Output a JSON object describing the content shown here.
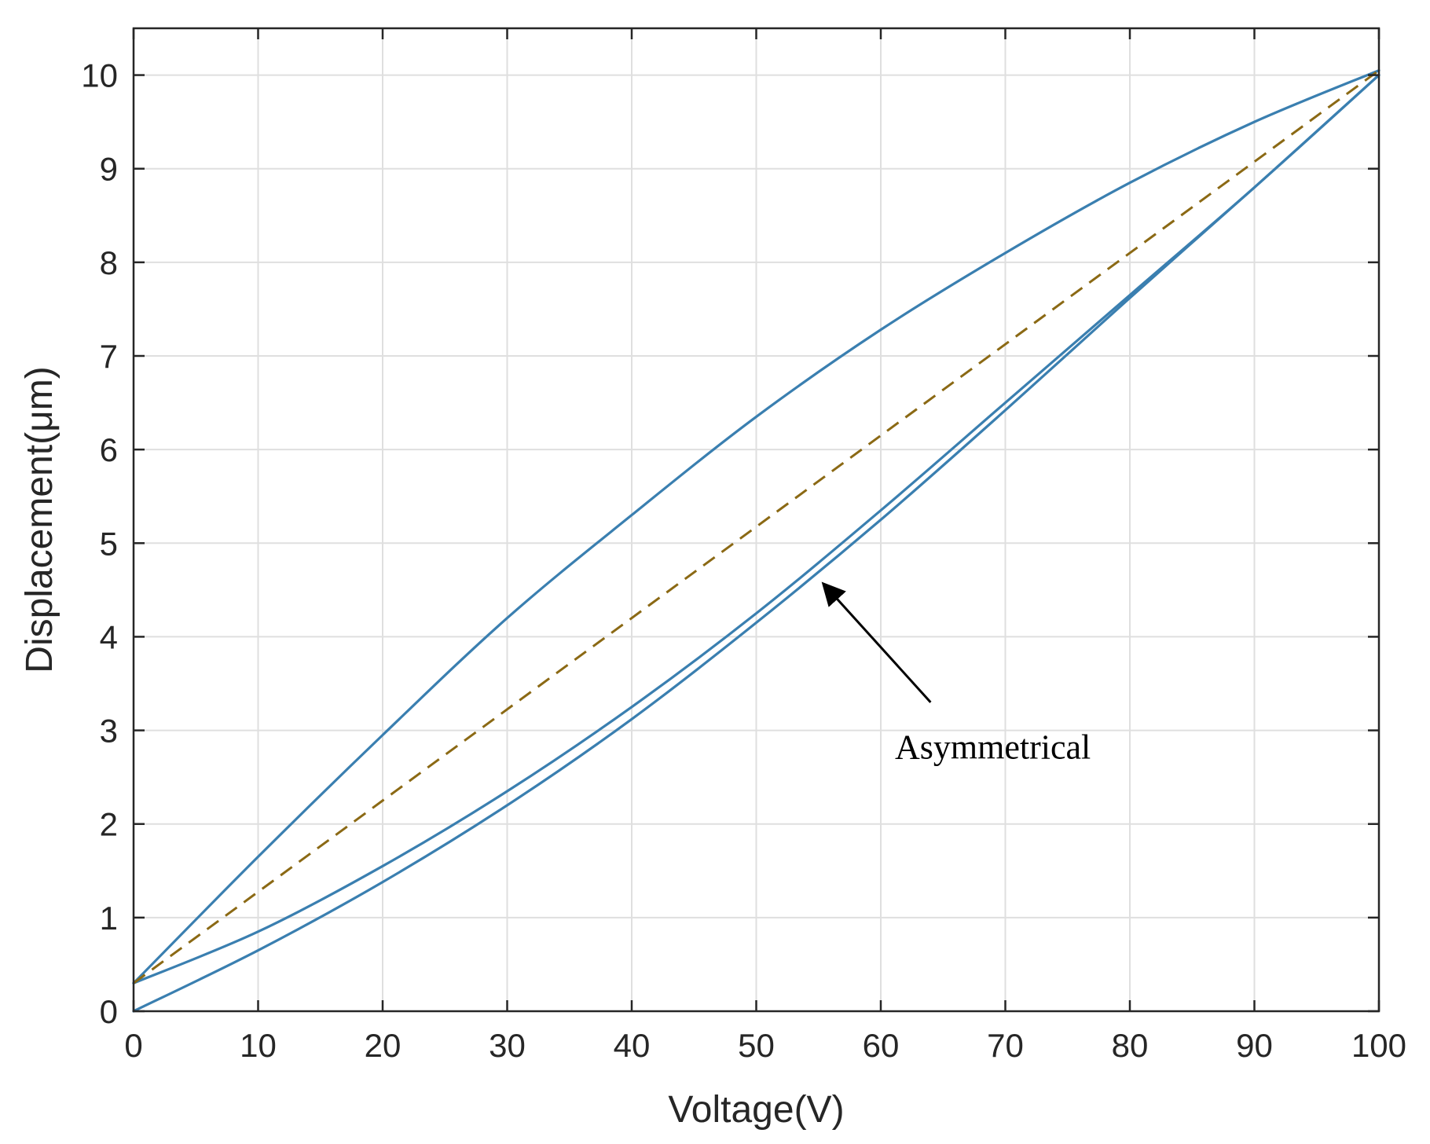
{
  "chart_data": {
    "type": "line",
    "title": "",
    "xlabel": "Voltage(V)",
    "ylabel": "Displacement(μm)",
    "xlim": [
      0,
      100
    ],
    "ylim": [
      0,
      10.5
    ],
    "xticks": [
      0,
      10,
      20,
      30,
      40,
      50,
      60,
      70,
      80,
      90,
      100
    ],
    "yticks": [
      0,
      1,
      2,
      3,
      4,
      5,
      6,
      7,
      8,
      9,
      10
    ],
    "grid": true,
    "legend": "none",
    "series": [
      {
        "color": "#3a7fb0",
        "dash": "solid",
        "x": [
          0,
          10,
          20,
          30,
          40,
          50,
          60,
          70,
          80,
          90,
          100
        ],
        "y": [
          0.3,
          1.65,
          2.95,
          4.2,
          5.3,
          6.35,
          7.28,
          8.1,
          8.85,
          9.5,
          10.05
        ]
      },
      {
        "color": "#3a7fb0",
        "dash": "solid",
        "x": [
          0,
          10,
          20,
          30,
          40,
          50,
          60,
          70,
          80,
          90,
          100
        ],
        "y": [
          0.3,
          0.85,
          1.55,
          2.35,
          3.25,
          4.25,
          5.35,
          6.5,
          7.65,
          8.8,
          10.0
        ]
      },
      {
        "color": "#3a7fb0",
        "dash": "solid",
        "x": [
          0,
          10,
          20,
          30,
          40,
          50,
          60,
          70,
          80,
          90,
          100
        ],
        "y": [
          0.0,
          0.65,
          1.38,
          2.2,
          3.12,
          4.15,
          5.25,
          6.42,
          7.62,
          8.8,
          10.0
        ]
      },
      {
        "color": "#8b6914",
        "dash": "dashed",
        "x": [
          0,
          100
        ],
        "y": [
          0.3,
          10.05
        ]
      }
    ],
    "annotations": [
      {
        "text": "Asymmetrical",
        "text_x": 69,
        "text_y": 2.7,
        "arrow_from": [
          64,
          3.3
        ],
        "arrow_to": [
          55.5,
          4.55
        ]
      }
    ]
  }
}
